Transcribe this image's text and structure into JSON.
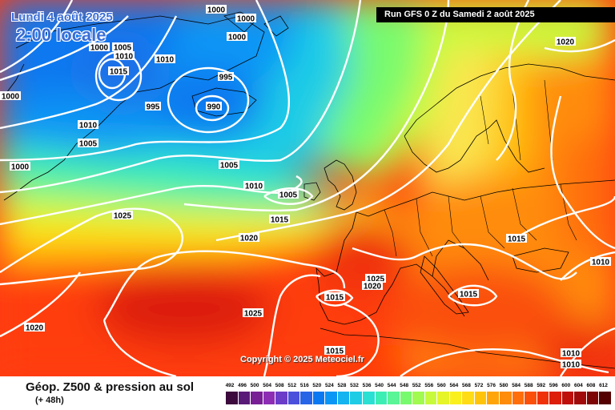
{
  "header": {
    "date": "Lundi 4 août 2025",
    "time": "2:00 locale",
    "run": "Run GFS 0 Z du Samedi 2 août 2025"
  },
  "copyright": "Copyright © 2025 Meteociel.fr",
  "footer": {
    "title": "Géop. Z500 & pression au sol",
    "subtitle": "(+ 48h)"
  },
  "scale": {
    "ticks": [
      "492",
      "496",
      "500",
      "504",
      "508",
      "512",
      "516",
      "520",
      "524",
      "528",
      "532",
      "536",
      "540",
      "544",
      "548",
      "552",
      "556",
      "560",
      "564",
      "568",
      "572",
      "576",
      "580",
      "584",
      "588",
      "592",
      "596",
      "600",
      "604",
      "608",
      "612"
    ],
    "colors": [
      "#3c0a3c",
      "#5a1a78",
      "#781f96",
      "#8c2db4",
      "#6a3cc8",
      "#4b50dc",
      "#2864e6",
      "#0a78f0",
      "#0a96f5",
      "#14b4f0",
      "#1ecce6",
      "#2ae0d2",
      "#3ceeb4",
      "#5af596",
      "#78fa6e",
      "#a0fa50",
      "#c8fa3c",
      "#e6f528",
      "#faf01e",
      "#ffdc14",
      "#ffc40a",
      "#ffa50a",
      "#ff8c0a",
      "#ff6e0a",
      "#fa500a",
      "#f0320a",
      "#dc1e0a",
      "#be0f0a",
      "#a00a0a",
      "#7d0505",
      "#550000"
    ]
  },
  "isobar_labels": [
    {
      "text": "1000"
    },
    {
      "text": "1000"
    },
    {
      "text": "1000"
    },
    {
      "text": "1000"
    },
    {
      "text": "1005"
    },
    {
      "text": "1010"
    },
    {
      "text": "1015"
    },
    {
      "text": "1010"
    },
    {
      "text": "995"
    },
    {
      "text": "995"
    },
    {
      "text": "990"
    },
    {
      "text": "1000"
    },
    {
      "text": "1010"
    },
    {
      "text": "1005"
    },
    {
      "text": "1000"
    },
    {
      "text": "1005"
    },
    {
      "text": "1010"
    },
    {
      "text": "1005"
    },
    {
      "text": "1015"
    },
    {
      "text": "1025"
    },
    {
      "text": "1020"
    },
    {
      "text": "1020"
    },
    {
      "text": "1015"
    },
    {
      "text": "1010"
    },
    {
      "text": "1025"
    },
    {
      "text": "1020"
    },
    {
      "text": "1015"
    },
    {
      "text": "1015"
    },
    {
      "text": "1025"
    },
    {
      "text": "1020"
    },
    {
      "text": "1015"
    },
    {
      "text": "1010"
    },
    {
      "text": "1010"
    }
  ]
}
